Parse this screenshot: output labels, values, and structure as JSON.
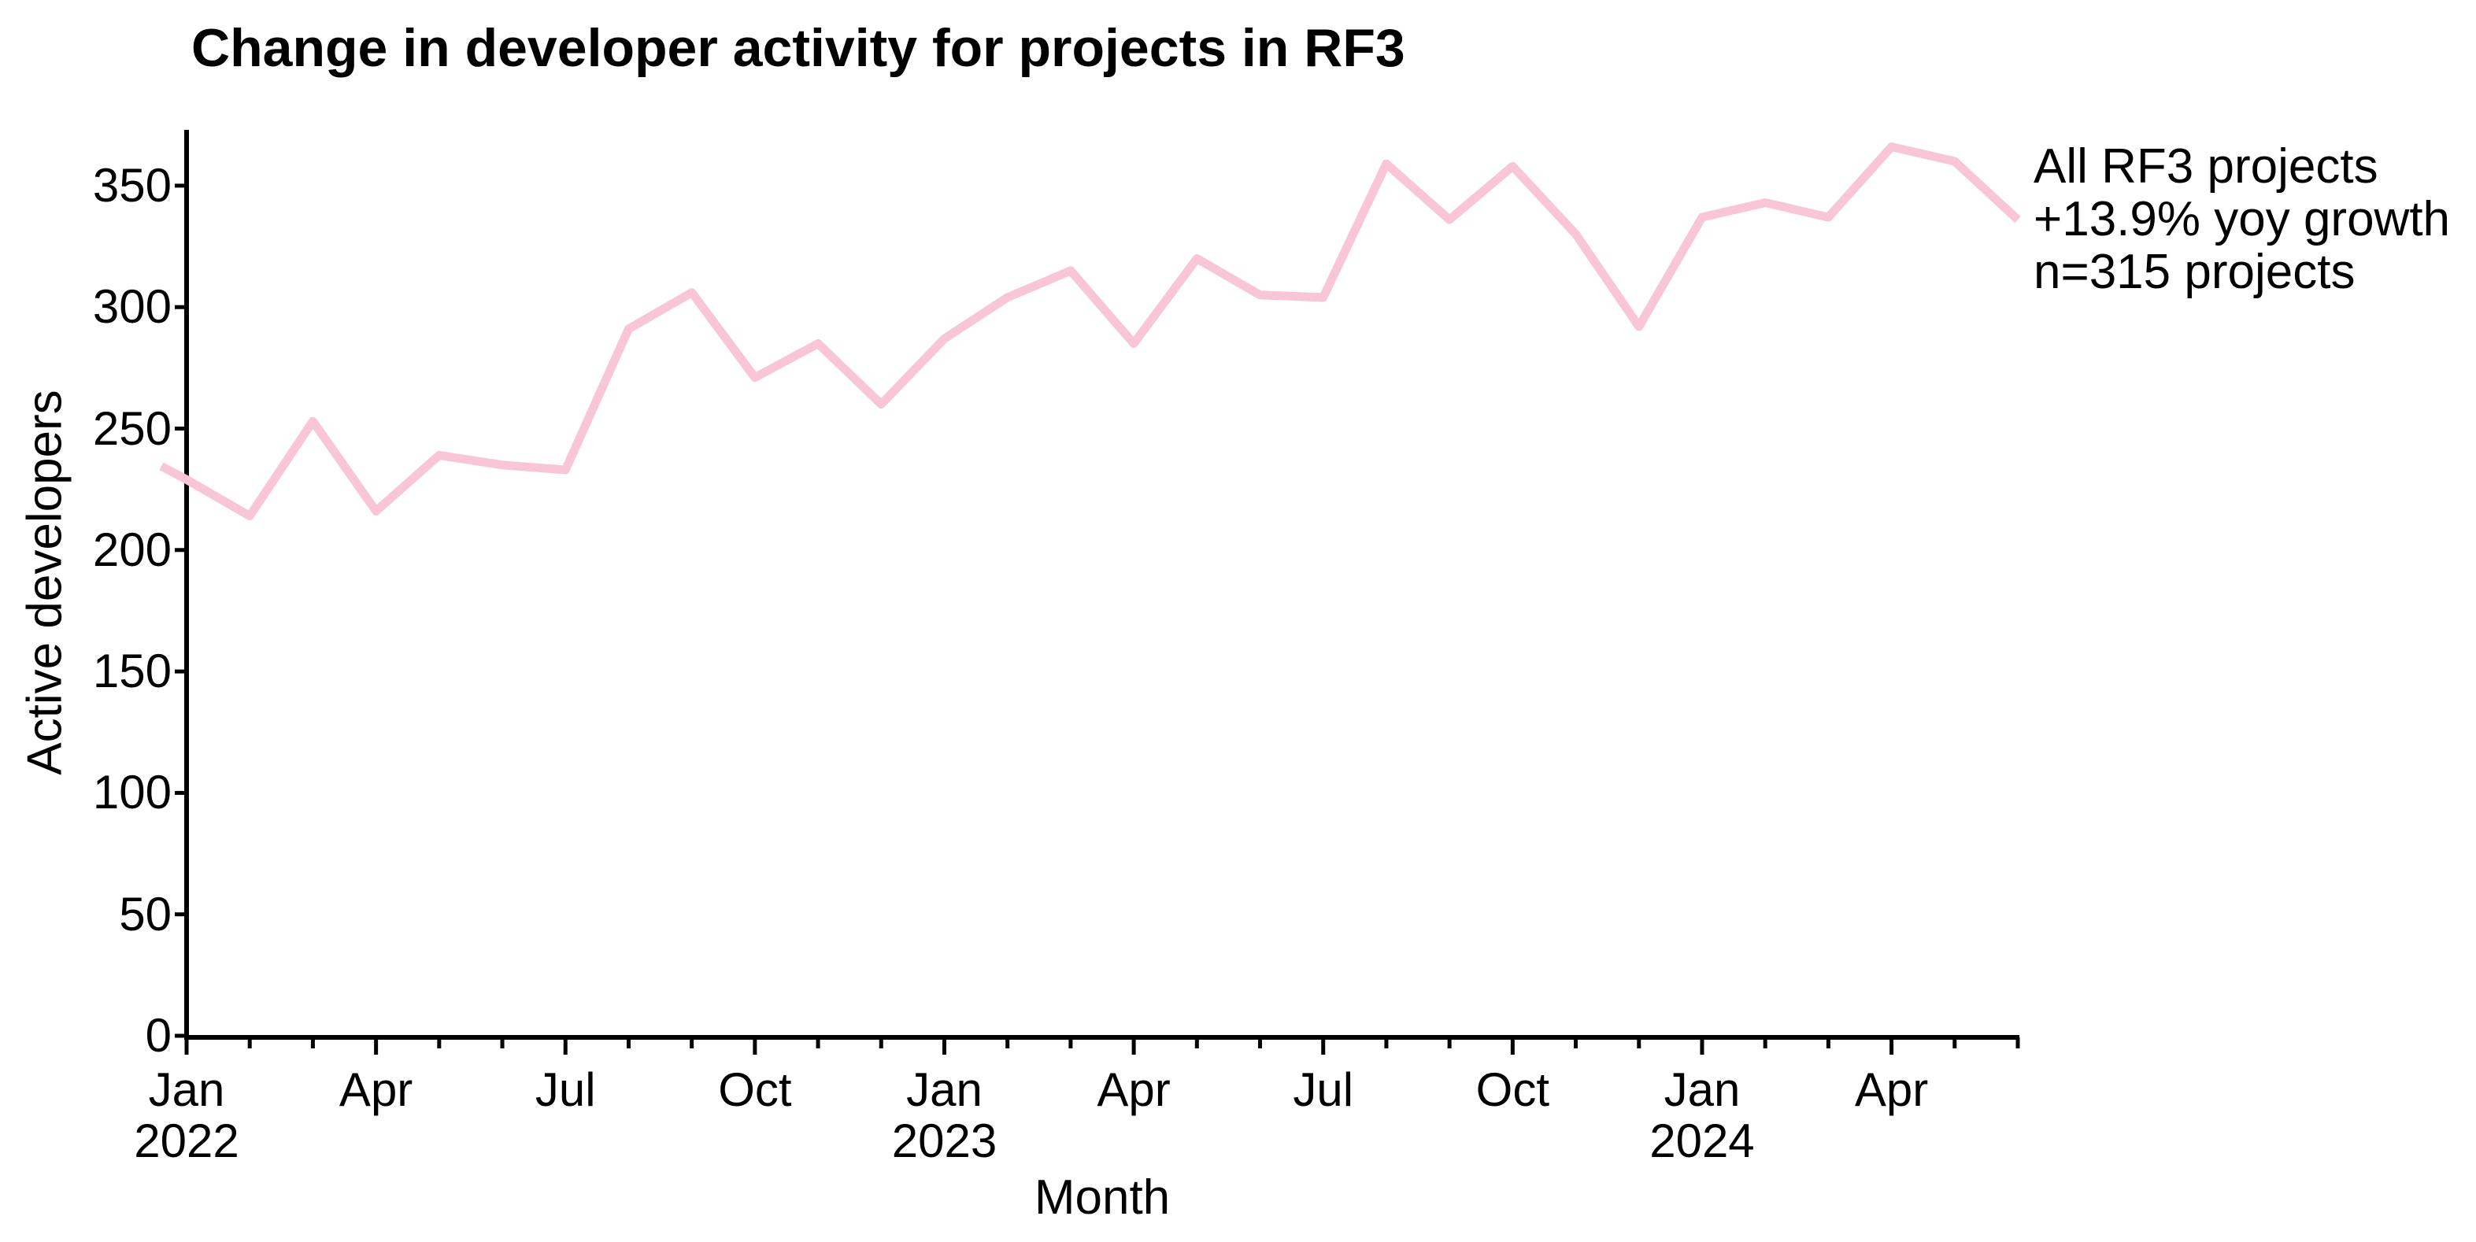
{
  "title": "Change in developer activity for projects in RF3",
  "chart_data": {
    "type": "line",
    "title": "Change in developer activity for projects in RF3",
    "xlabel": "Month",
    "ylabel": "Active developers",
    "x": [
      "Jan 2022",
      "Feb 2022",
      "Mar 2022",
      "Apr 2022",
      "May 2022",
      "Jun 2022",
      "Jul 2022",
      "Aug 2022",
      "Sep 2022",
      "Oct 2022",
      "Nov 2022",
      "Dec 2022",
      "Jan 2023",
      "Feb 2023",
      "Mar 2023",
      "Apr 2023",
      "May 2023",
      "Jun 2023",
      "Jul 2023",
      "Aug 2023",
      "Sep 2023",
      "Oct 2023",
      "Nov 2023",
      "Dec 2023",
      "Jan 2024",
      "Feb 2024",
      "Mar 2024",
      "Apr 2024",
      "May 2024",
      "Jun 2024"
    ],
    "series": [
      {
        "name": "All RF3 projects",
        "values": [
          229,
          214,
          253,
          216,
          239,
          235,
          233,
          291,
          306,
          271,
          285,
          260,
          287,
          304,
          315,
          285,
          320,
          305,
          304,
          359,
          336,
          358,
          330,
          292,
          337,
          343,
          337,
          366,
          360,
          336
        ]
      }
    ],
    "annotation": [
      "All RF3 projects",
      "+13.9% yoy growth",
      "n=315 projects"
    ],
    "yticks": [
      0,
      50,
      100,
      150,
      200,
      250,
      300,
      350
    ],
    "ylim": [
      0,
      373
    ],
    "xticks_major": [
      {
        "index": 0,
        "month": "Jan",
        "year": "2022"
      },
      {
        "index": 3,
        "month": "Apr",
        "year": ""
      },
      {
        "index": 6,
        "month": "Jul",
        "year": ""
      },
      {
        "index": 9,
        "month": "Oct",
        "year": ""
      },
      {
        "index": 12,
        "month": "Jan",
        "year": "2023"
      },
      {
        "index": 15,
        "month": "Apr",
        "year": ""
      },
      {
        "index": 18,
        "month": "Jul",
        "year": ""
      },
      {
        "index": 21,
        "month": "Oct",
        "year": ""
      },
      {
        "index": 24,
        "month": "Jan",
        "year": "2024"
      },
      {
        "index": 27,
        "month": "Apr",
        "year": ""
      }
    ],
    "grid": false,
    "legend_position": "right-of-line-end",
    "line_color": "#F9C6D8",
    "axis_color": "#000000",
    "text_color": "#000000",
    "line_width": 11,
    "leading_stub": {
      "index": -0.4,
      "value": 234.5
    }
  }
}
